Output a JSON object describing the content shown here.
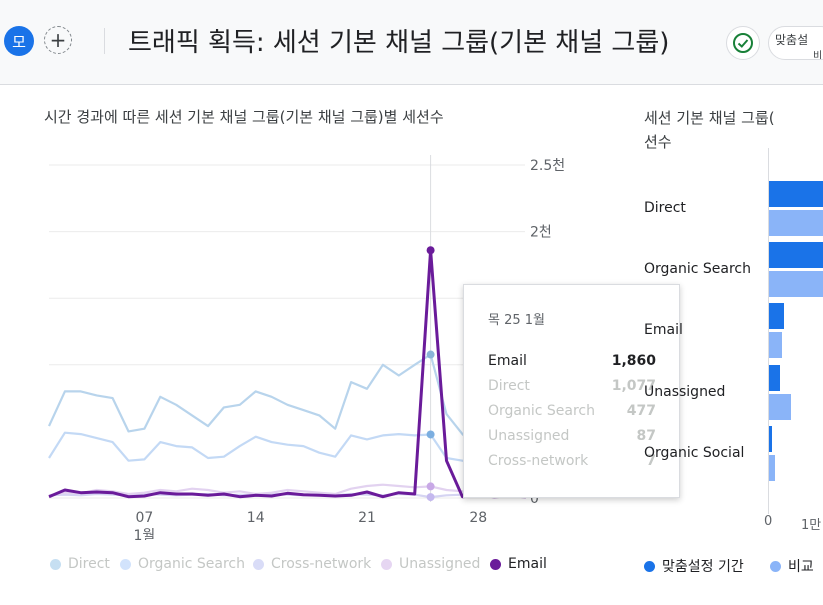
{
  "header": {
    "avatar_letter": "모",
    "add_symbol": "+",
    "title": "트래픽 획득: 세션 기본 채널 그룹(기본 채널 그룹)",
    "customize_line1": "맞춤설",
    "customize_line2": "비"
  },
  "line_chart": {
    "title": "시간 경과에 따른 세션 기본 채널 그룹(기본 채널 그룹)별 세션수",
    "y_ticks": [
      "2.5천",
      "2천",
      "1.5천",
      "1천",
      "0"
    ],
    "x_ticks": [
      "07",
      "14",
      "21",
      "28"
    ],
    "month_label": "1월"
  },
  "tooltip": {
    "date": "목 25 1월",
    "rows": [
      {
        "name": "Email",
        "value": "1,860"
      },
      {
        "name": "Direct",
        "value": "1,077"
      },
      {
        "name": "Organic Search",
        "value": "477"
      },
      {
        "name": "Unassigned",
        "value": "87"
      },
      {
        "name": "Cross-network",
        "value": "7"
      }
    ]
  },
  "legend": [
    {
      "name": "Direct",
      "color": "#c6dff2"
    },
    {
      "name": "Organic Search",
      "color": "#d2e3fc"
    },
    {
      "name": "Cross-network",
      "color": "#d9dcf7"
    },
    {
      "name": "Unassigned",
      "color": "#e6d6f2"
    },
    {
      "name": "Email",
      "color": "#6a1b9a"
    }
  ],
  "bar_chart": {
    "title_line1": "세션 기본 채널 그룹(",
    "title_line2": "션수",
    "categories": [
      "Direct",
      "Organic Search",
      "Email",
      "Unassigned",
      "Organic Social"
    ],
    "x_ticks": [
      "0",
      "1만"
    ],
    "legend": [
      {
        "name": "맞춤설정 기간",
        "color": "#1a73e8"
      },
      {
        "name": "비교",
        "color": "#8ab4f8"
      }
    ]
  },
  "chart_data": [
    {
      "type": "line",
      "title": "시간 경과에 따른 세션 기본 채널 그룹(기본 채널 그룹)별 세션수",
      "ylim": [
        0,
        2500
      ],
      "x": [
        "1",
        "2",
        "3",
        "4",
        "5",
        "6",
        "7",
        "8",
        "9",
        "10",
        "11",
        "12",
        "13",
        "14",
        "15",
        "16",
        "17",
        "18",
        "19",
        "20",
        "21",
        "22",
        "23",
        "24",
        "25",
        "26",
        "27",
        "28",
        "29",
        "30",
        "31"
      ],
      "series": [
        {
          "name": "Direct",
          "color": "#b8d4ec",
          "values": [
            540,
            800,
            800,
            770,
            750,
            500,
            520,
            760,
            700,
            620,
            540,
            680,
            700,
            800,
            760,
            700,
            660,
            620,
            520,
            870,
            820,
            1000,
            920,
            1000,
            1077,
            630,
            480,
            380,
            430,
            400,
            380
          ]
        },
        {
          "name": "Organic Search",
          "color": "#c3d9f5",
          "values": [
            300,
            490,
            480,
            450,
            420,
            280,
            290,
            420,
            390,
            380,
            300,
            310,
            390,
            460,
            420,
            400,
            390,
            340,
            310,
            470,
            440,
            470,
            480,
            470,
            477,
            300,
            280,
            250,
            240,
            240,
            230
          ]
        },
        {
          "name": "Cross-network",
          "color": "#d5d4f2",
          "values": [
            20,
            25,
            20,
            30,
            25,
            20,
            30,
            25,
            20,
            25,
            30,
            20,
            25,
            20,
            30,
            25,
            20,
            25,
            20,
            30,
            25,
            20,
            30,
            25,
            7,
            20,
            25,
            20,
            25,
            20,
            20
          ]
        },
        {
          "name": "Unassigned",
          "color": "#e2d2f0",
          "values": [
            20,
            40,
            35,
            60,
            50,
            30,
            40,
            60,
            50,
            70,
            60,
            40,
            50,
            30,
            40,
            60,
            50,
            40,
            30,
            70,
            90,
            100,
            90,
            80,
            87,
            60,
            50,
            40,
            50,
            40,
            40
          ]
        },
        {
          "name": "Email",
          "color": "#6a1b9a",
          "values": [
            10,
            60,
            40,
            45,
            40,
            10,
            15,
            40,
            30,
            30,
            20,
            30,
            10,
            20,
            15,
            35,
            25,
            20,
            15,
            20,
            45,
            10,
            40,
            30,
            1860,
            280,
            10,
            20,
            10,
            15,
            10
          ]
        }
      ]
    },
    {
      "type": "bar",
      "categories": [
        "Direct",
        "Organic Search",
        "Email",
        "Unassigned",
        "Organic Social"
      ],
      "x_ticks": [
        "0",
        "1만"
      ],
      "series": [
        {
          "name": "맞춤설정 기간",
          "color": "#1a73e8",
          "values": [
            17000,
            16000,
            4000,
            3000,
            800
          ]
        },
        {
          "name": "비교",
          "color": "#8ab4f8",
          "values": [
            16000,
            16500,
            3500,
            6000,
            1500
          ]
        }
      ]
    }
  ]
}
